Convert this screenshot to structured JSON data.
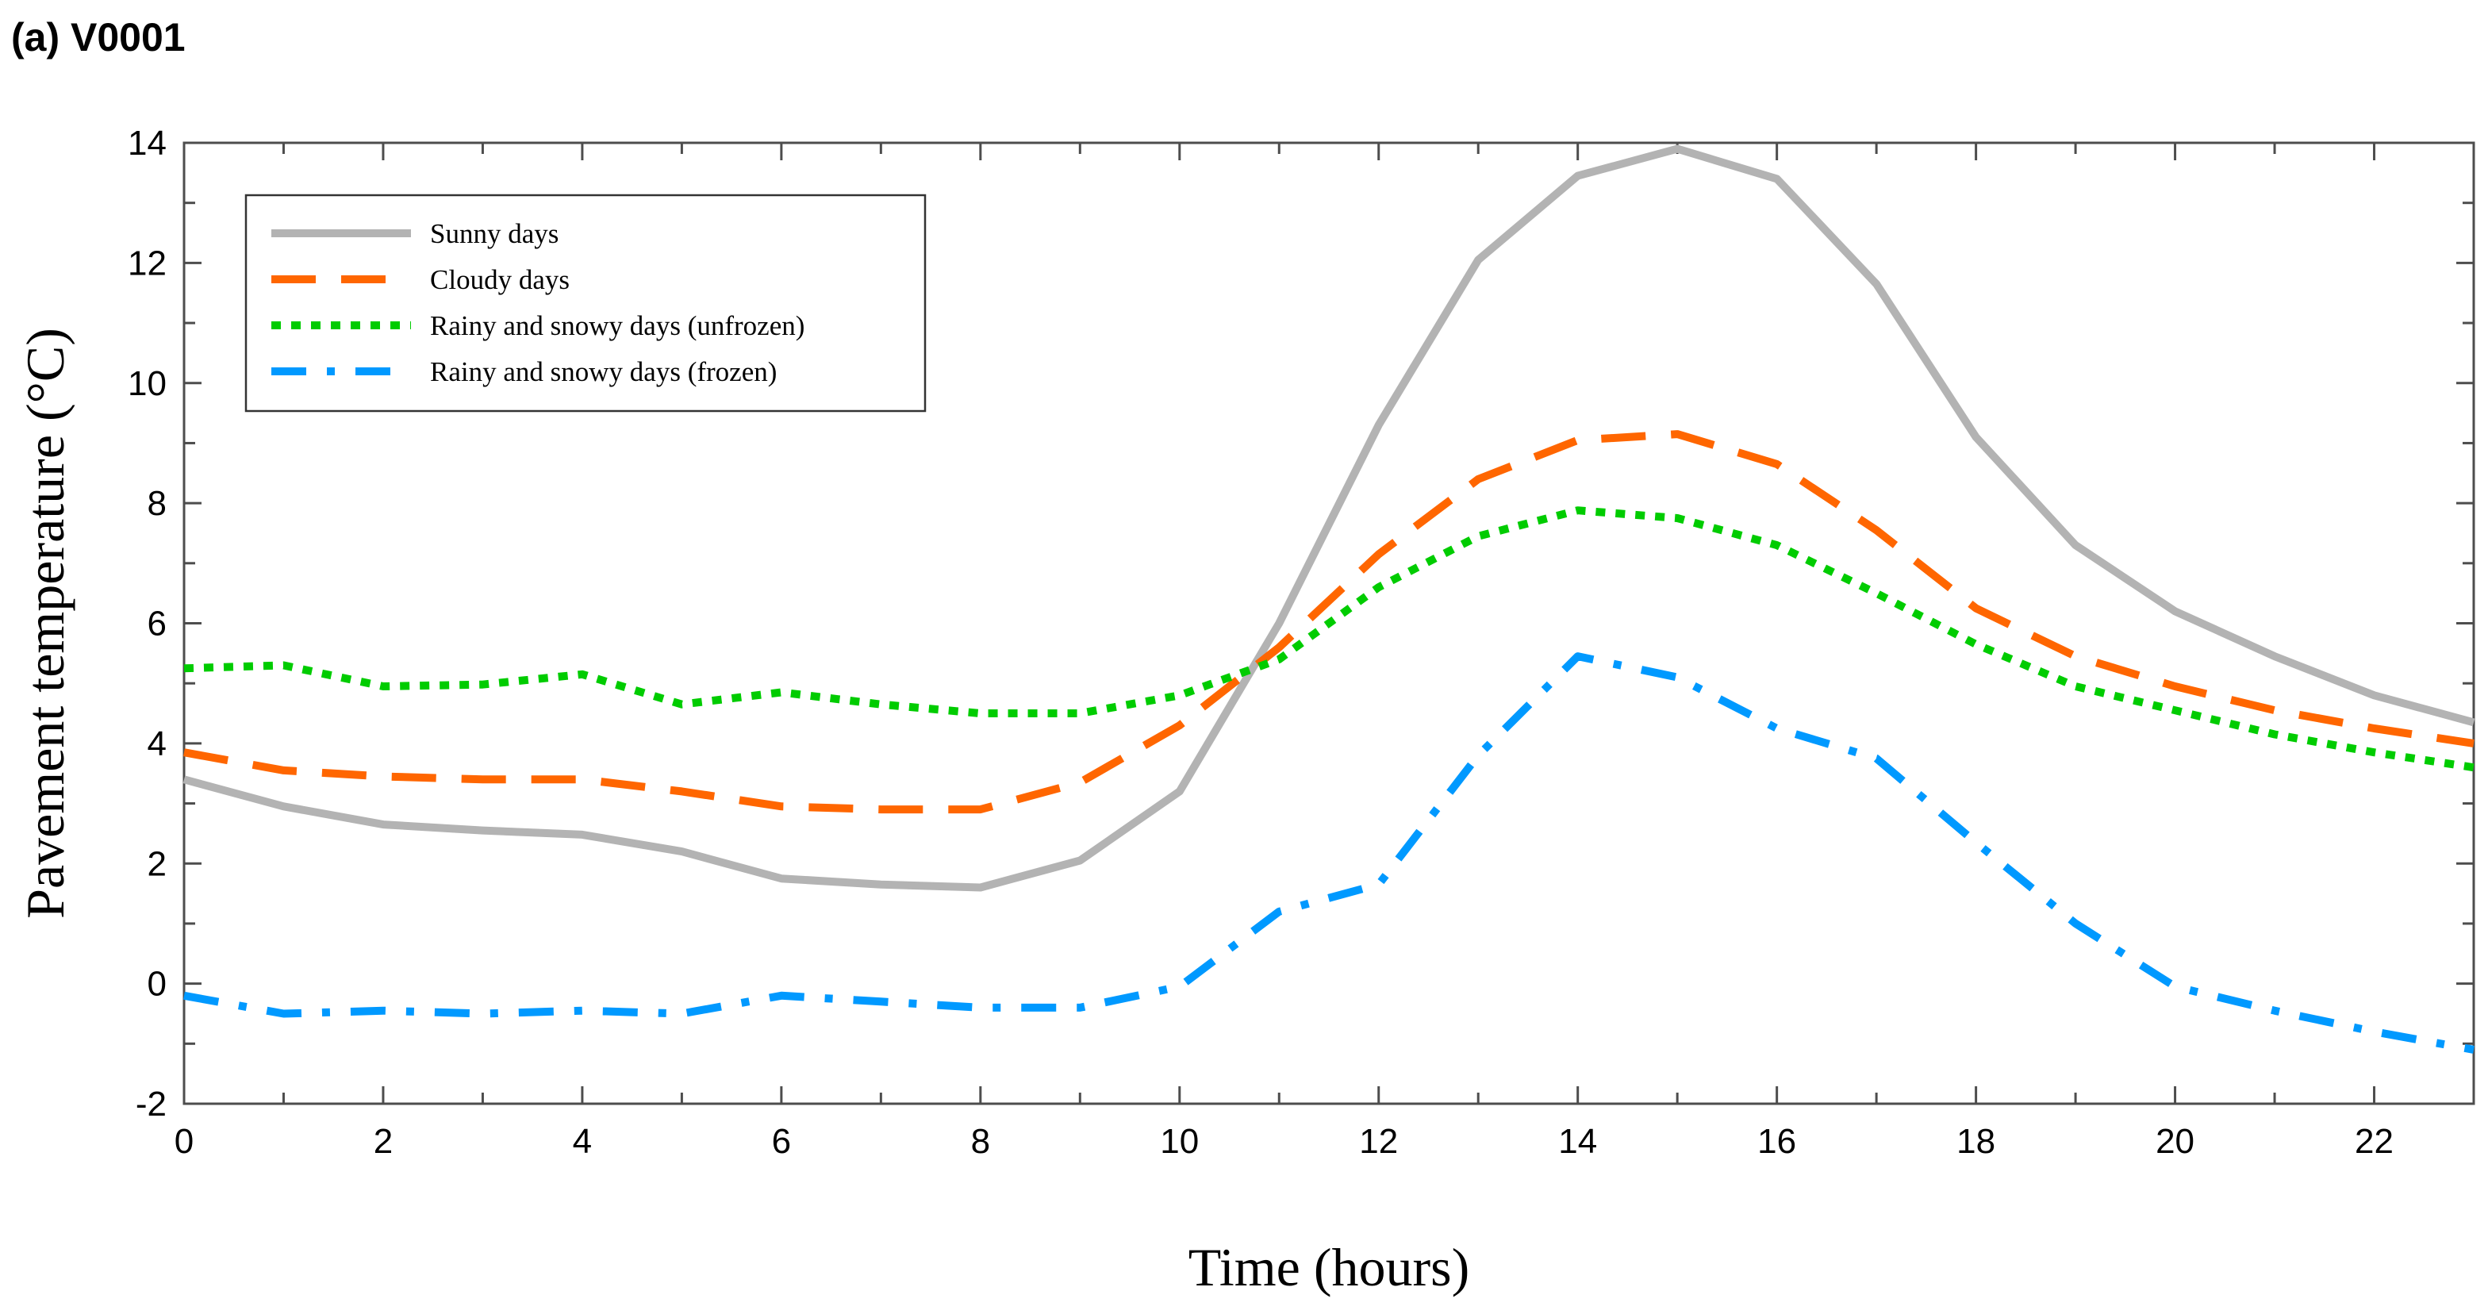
{
  "panel_label": "(a) V0001",
  "chart_data": {
    "type": "line",
    "title": "",
    "xlabel": "Time (hours)",
    "ylabel": "Pavement temperature (°C)",
    "xlim": [
      0,
      23
    ],
    "ylim": [
      -2,
      14
    ],
    "xticks": [
      0,
      2,
      4,
      6,
      8,
      10,
      12,
      14,
      16,
      18,
      20,
      22
    ],
    "yticks": [
      -2,
      0,
      2,
      4,
      6,
      8,
      10,
      12,
      14
    ],
    "grid": false,
    "legend_position": "top-left",
    "x": [
      0,
      1,
      2,
      3,
      4,
      5,
      6,
      7,
      8,
      9,
      10,
      11,
      12,
      13,
      14,
      15,
      16,
      17,
      18,
      19,
      20,
      21,
      22,
      23
    ],
    "series": [
      {
        "name": "Sunny days",
        "color": "#b3b3b3",
        "style": "solid",
        "values": [
          3.4,
          2.95,
          2.65,
          2.55,
          2.48,
          2.2,
          1.75,
          1.65,
          1.6,
          2.05,
          3.2,
          6.0,
          9.3,
          12.05,
          13.45,
          13.9,
          13.4,
          11.65,
          9.1,
          7.3,
          6.2,
          5.45,
          4.8,
          4.35
        ]
      },
      {
        "name": "Cloudy days",
        "color": "#ff6600",
        "style": "dashed",
        "values": [
          3.85,
          3.55,
          3.45,
          3.4,
          3.4,
          3.2,
          2.95,
          2.9,
          2.9,
          3.35,
          4.3,
          5.6,
          7.15,
          8.4,
          9.05,
          9.15,
          8.65,
          7.55,
          6.25,
          5.45,
          4.95,
          4.55,
          4.25,
          4.0
        ]
      },
      {
        "name": "Rainy and snowy days (unfrozen)",
        "color": "#00cc00",
        "style": "dotted",
        "values": [
          5.25,
          5.3,
          4.95,
          4.98,
          5.15,
          4.65,
          4.85,
          4.65,
          4.5,
          4.5,
          4.8,
          5.4,
          6.6,
          7.45,
          7.88,
          7.75,
          7.3,
          6.5,
          5.65,
          4.95,
          4.55,
          4.15,
          3.85,
          3.6
        ]
      },
      {
        "name": "Rainy and snowy days (frozen)",
        "color": "#0099ff",
        "style": "dashdot",
        "values": [
          -0.2,
          -0.5,
          -0.45,
          -0.5,
          -0.45,
          -0.5,
          -0.2,
          -0.3,
          -0.4,
          -0.4,
          -0.05,
          1.2,
          1.65,
          3.8,
          5.45,
          5.1,
          4.25,
          3.75,
          2.35,
          1.0,
          -0.05,
          -0.45,
          -0.8,
          -1.1
        ]
      }
    ]
  }
}
